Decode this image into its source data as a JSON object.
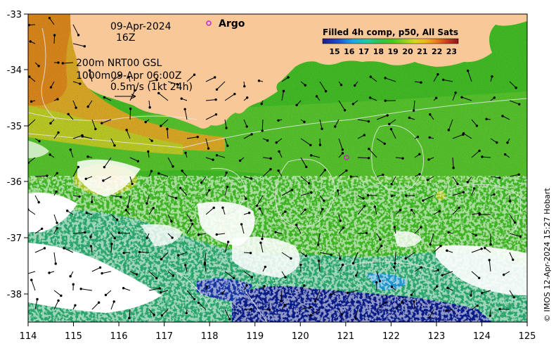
{
  "map": {
    "date": "09-Apr-2024",
    "hour": "16Z",
    "line1": "200m  NRT00 GSL",
    "line2": "1000m09-Apr 06:00Z",
    "speed_scale": "0.5m/s (1kt 24h)",
    "argo_label": "Argo",
    "credit": "© IMOS 12-Apr-2024 15:27 Hobart",
    "x_ticks": [
      "114",
      "115",
      "116",
      "117",
      "118",
      "119",
      "120",
      "121",
      "122",
      "123",
      "124",
      "125"
    ],
    "y_ticks": [
      "-33",
      "-34",
      "-35",
      "-36",
      "-37",
      "-38"
    ],
    "colorbar": {
      "title": "Filled 4h comp, p50, All Sats",
      "labels": [
        "15",
        "16",
        "17",
        "18",
        "19",
        "20",
        "21",
        "22",
        "23"
      ],
      "colors": [
        "#1a1a8c",
        "#2050c8",
        "#1fa5e0",
        "#25c8a0",
        "#35c050",
        "#4cc81e",
        "#8fd21e",
        "#d8d81e",
        "#f0b41e",
        "#e87a1e",
        "#c83c1e",
        "#8c141e"
      ]
    },
    "colors": {
      "land": "#f8c898",
      "ocean_green": "#46c828",
      "cold_blue": "#0a1e96",
      "warm_orange": "#e8a028",
      "argo": "#d020d0"
    }
  }
}
